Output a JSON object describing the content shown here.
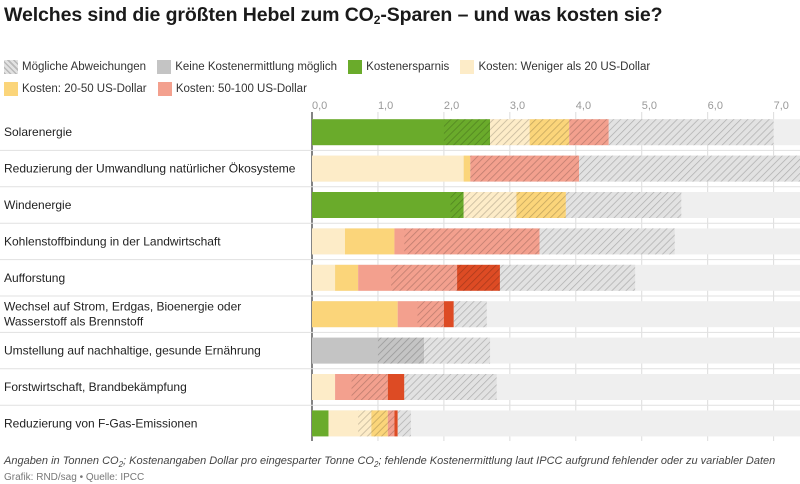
{
  "header": {
    "title_before": "Welches sind die größten Hebel zum CO",
    "title_sub": "2",
    "title_after": "-Sparen – und was kosten sie?"
  },
  "legend": [
    {
      "label": "Mögliche Abweichungen",
      "key": "deviation"
    },
    {
      "label": "Keine Kostenermittlung möglich",
      "key": "nocost"
    },
    {
      "label": "Kostenersparnis",
      "key": "savings"
    },
    {
      "label": "Kosten: Weniger als 20 US-Dollar",
      "key": "lt20"
    },
    {
      "label": "Kosten: 20-50 US-Dollar",
      "key": "c20_50"
    },
    {
      "label": "Kosten: 50-100 US-Dollar",
      "key": "c50_100"
    }
  ],
  "colors": {
    "savings": "#6aab2b",
    "lt20": "#fdecc8",
    "c20_50": "#fbd57a",
    "c50_100": "#f3a08e",
    "c100plus": "#dd4b24",
    "nocost": "#c4c4c4",
    "deviation": "#e2e2e2",
    "track": "#efefef",
    "hatch": "#b8b8b8"
  },
  "chart_data": {
    "type": "bar",
    "orientation": "horizontal",
    "stacked": true,
    "xlim": [
      0,
      7.4
    ],
    "ticks": [
      "0,0",
      "1,0",
      "2,0",
      "3,0",
      "4,0",
      "5,0",
      "6,0",
      "7,0"
    ],
    "tick_values": [
      0,
      1,
      2,
      3,
      4,
      5,
      6,
      7
    ],
    "categories": [
      {
        "label": "Solarenergie",
        "segments": [
          {
            "key": "savings",
            "from": 0,
            "to": 2.7,
            "hatch_from": 2.0
          },
          {
            "key": "lt20",
            "from": 2.7,
            "to": 3.3,
            "hatch_from": 2.7
          },
          {
            "key": "c20_50",
            "from": 3.3,
            "to": 3.9,
            "hatch_from": 3.3
          },
          {
            "key": "c50_100",
            "from": 3.9,
            "to": 4.5,
            "hatch_from": 3.9
          },
          {
            "key": "deviation",
            "from": 4.5,
            "to": 7.0,
            "hatch_from": 4.5
          }
        ]
      },
      {
        "label": "Reduzierung der Umwandlung natürlicher Ökosysteme",
        "segments": [
          {
            "key": "lt20",
            "from": 0,
            "to": 2.3
          },
          {
            "key": "c20_50",
            "from": 2.3,
            "to": 2.4
          },
          {
            "key": "c50_100",
            "from": 2.4,
            "to": 4.05,
            "hatch_from": 2.4
          },
          {
            "key": "deviation",
            "from": 4.05,
            "to": 7.4,
            "hatch_from": 4.05
          }
        ]
      },
      {
        "label": "Windenergie",
        "segments": [
          {
            "key": "savings",
            "from": 0,
            "to": 2.3,
            "hatch_from": 2.1
          },
          {
            "key": "lt20",
            "from": 2.3,
            "to": 3.1,
            "hatch_from": 2.3
          },
          {
            "key": "c20_50",
            "from": 3.1,
            "to": 3.85,
            "hatch_from": 3.1
          },
          {
            "key": "deviation",
            "from": 3.85,
            "to": 5.6,
            "hatch_from": 3.85
          }
        ]
      },
      {
        "label": "Kohlenstoffbindung in der Landwirtschaft",
        "segments": [
          {
            "key": "lt20",
            "from": 0,
            "to": 0.5
          },
          {
            "key": "c20_50",
            "from": 0.5,
            "to": 1.25
          },
          {
            "key": "c50_100",
            "from": 1.25,
            "to": 3.45,
            "hatch_from": 1.4
          },
          {
            "key": "deviation",
            "from": 3.45,
            "to": 5.5,
            "hatch_from": 3.45
          }
        ]
      },
      {
        "label": "Aufforstung",
        "segments": [
          {
            "key": "lt20",
            "from": 0,
            "to": 0.35
          },
          {
            "key": "c20_50",
            "from": 0.35,
            "to": 0.7
          },
          {
            "key": "c50_100",
            "from": 0.7,
            "to": 2.2,
            "hatch_from": 1.2
          },
          {
            "key": "c100plus",
            "from": 2.2,
            "to": 2.85,
            "hatch_from": 2.2
          },
          {
            "key": "deviation",
            "from": 2.85,
            "to": 4.9,
            "hatch_from": 2.85
          }
        ]
      },
      {
        "label": "Wechsel auf Strom, Erdgas, Bioenergie oder Wasserstoff als Brennstoff",
        "segments": [
          {
            "key": "c20_50",
            "from": 0,
            "to": 1.3
          },
          {
            "key": "c50_100",
            "from": 1.3,
            "to": 2.0,
            "hatch_from": 1.6
          },
          {
            "key": "c100plus",
            "from": 2.0,
            "to": 2.15
          },
          {
            "key": "deviation",
            "from": 2.15,
            "to": 2.65,
            "hatch_from": 2.15
          }
        ]
      },
      {
        "label": "Umstellung auf nachhaltige, gesunde Ernährung",
        "segments": [
          {
            "key": "nocost",
            "from": 0,
            "to": 1.7,
            "hatch_from": 1.0
          },
          {
            "key": "deviation",
            "from": 1.7,
            "to": 2.7,
            "hatch_from": 1.7
          }
        ]
      },
      {
        "label": "Forstwirtschaft, Brandbekämpfung",
        "segments": [
          {
            "key": "lt20",
            "from": 0,
            "to": 0.35
          },
          {
            "key": "c50_100",
            "from": 0.35,
            "to": 1.15,
            "hatch_from": 0.6
          },
          {
            "key": "c100plus",
            "from": 1.15,
            "to": 1.4
          },
          {
            "key": "deviation",
            "from": 1.4,
            "to": 2.8,
            "hatch_from": 1.4
          }
        ]
      },
      {
        "label": "Reduzierung von F-Gas-Emissionen",
        "segments": [
          {
            "key": "savings",
            "from": 0,
            "to": 0.25
          },
          {
            "key": "lt20",
            "from": 0.25,
            "to": 0.9,
            "hatch_from": 0.7
          },
          {
            "key": "c20_50",
            "from": 0.9,
            "to": 1.15,
            "hatch_from": 0.9
          },
          {
            "key": "c50_100",
            "from": 1.15,
            "to": 1.25,
            "hatch_from": 1.15
          },
          {
            "key": "c100plus",
            "from": 1.25,
            "to": 1.3
          },
          {
            "key": "deviation",
            "from": 1.3,
            "to": 1.5,
            "hatch_from": 1.3
          }
        ]
      }
    ]
  },
  "footer": {
    "note_a": "Angaben in Tonnen CO",
    "note_sub1": "2",
    "note_b": "; Kostenangaben Dollar pro eingesparter Tonne CO",
    "note_sub2": "2",
    "note_c": "; fehlende Kostenermittlung laut IPCC aufgrund fehlender oder zu variabler Daten",
    "source": "Grafik: RND/sag • Quelle: IPCC"
  }
}
